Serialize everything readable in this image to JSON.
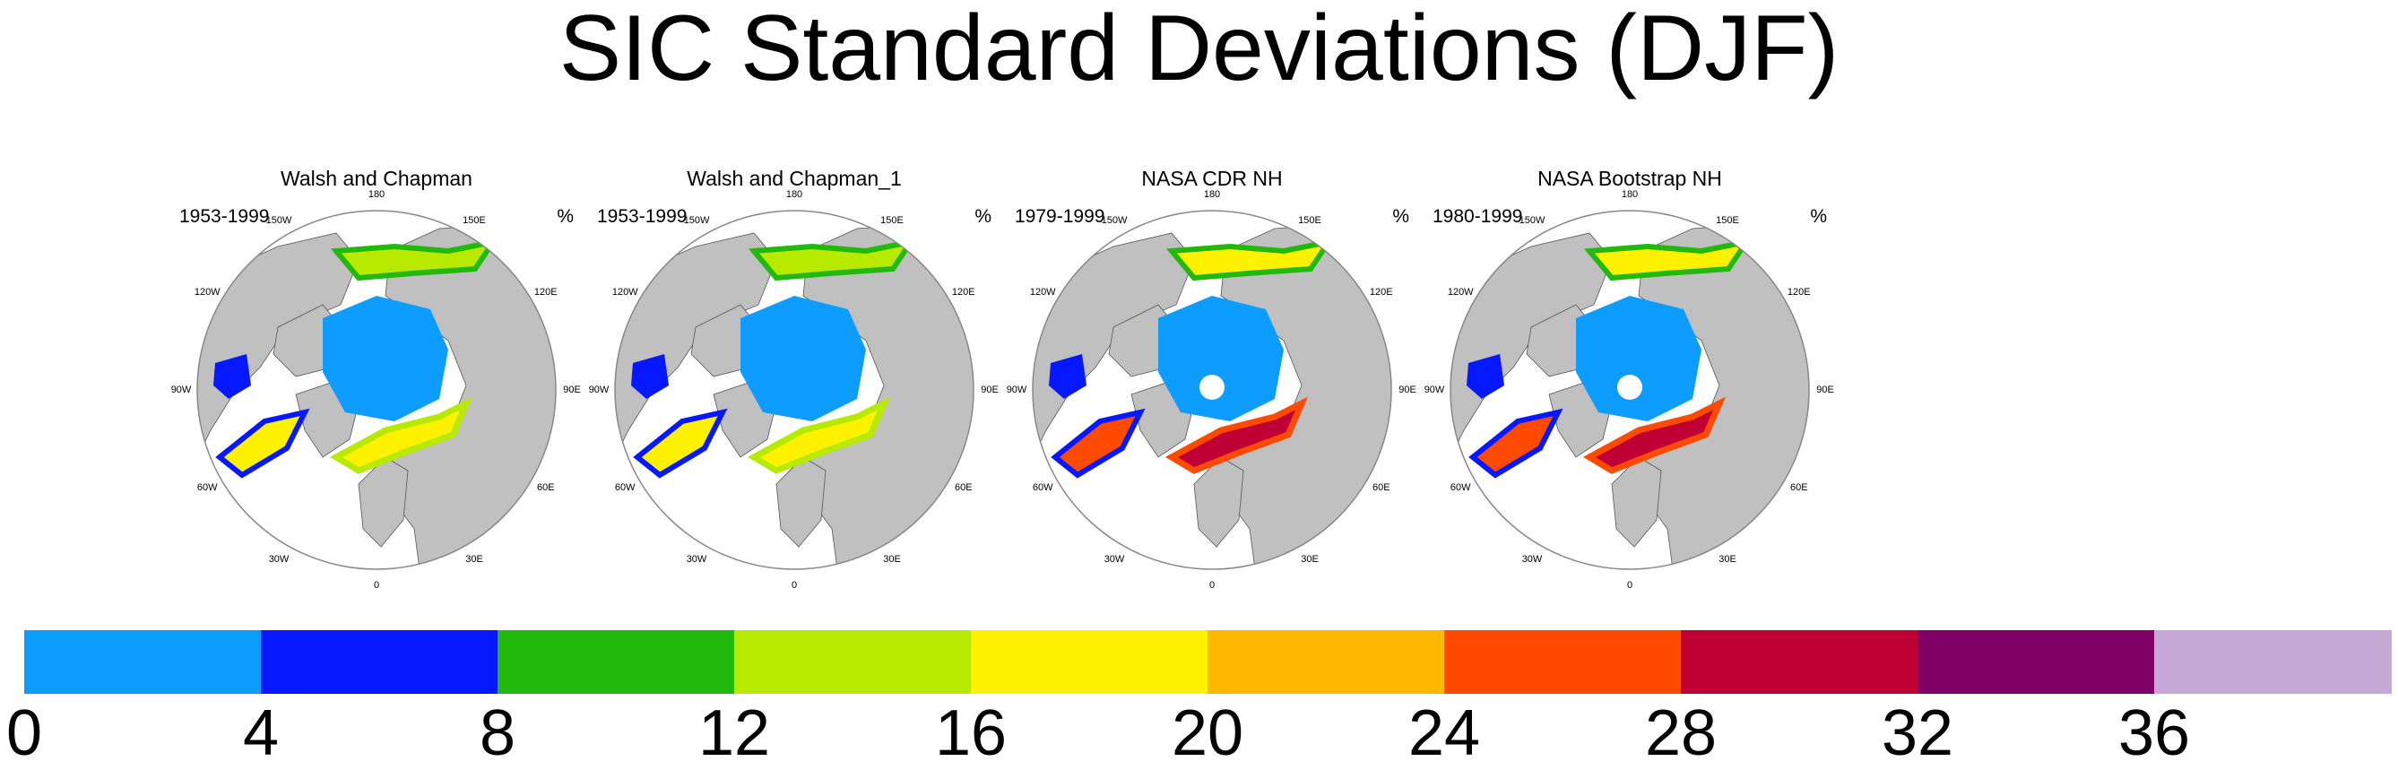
{
  "title": "SIC Standard Deviations (DJF)",
  "units": "%",
  "colors": {
    "ocean": "#ffffff",
    "land": "#c0c0c0",
    "ice_low": "#0d9cff",
    "coastline": "#555555"
  },
  "longitude_labels": [
    "180",
    "150E",
    "120E",
    "90E",
    "60E",
    "30E",
    "0",
    "30W",
    "60W",
    "90W",
    "120W",
    "150W"
  ],
  "panels": [
    {
      "title": "Walsh and Chapman",
      "period": "1953-1999",
      "unit": "%",
      "pole_hole": false,
      "intensity": "low"
    },
    {
      "title": "Walsh and Chapman_1",
      "period": "1953-1999",
      "unit": "%",
      "pole_hole": false,
      "intensity": "low"
    },
    {
      "title": "NASA CDR NH",
      "period": "1979-1999",
      "unit": "%",
      "pole_hole": true,
      "intensity": "high"
    },
    {
      "title": "NASA Bootstrap NH",
      "period": "1980-1999",
      "unit": "%",
      "pole_hole": true,
      "intensity": "high"
    }
  ],
  "colorbar": {
    "labels": [
      "0",
      "4",
      "8",
      "12",
      "16",
      "20",
      "24",
      "28",
      "32",
      "36"
    ],
    "colors": [
      "#0d9cff",
      "#0518ff",
      "#22b90d",
      "#b8ea00",
      "#fff200",
      "#ffb700",
      "#ff4a00",
      "#be0035",
      "#800066",
      "#c6a8d6"
    ]
  }
}
